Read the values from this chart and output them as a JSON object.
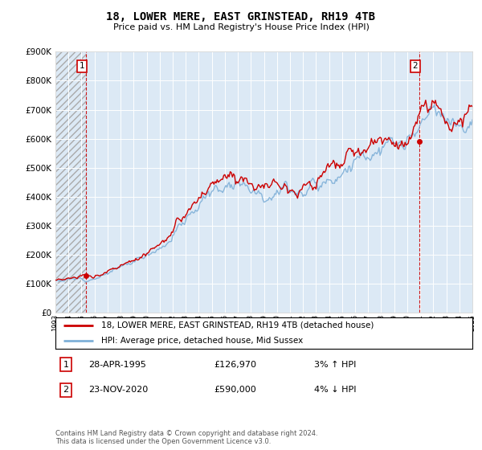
{
  "title": "18, LOWER MERE, EAST GRINSTEAD, RH19 4TB",
  "subtitle": "Price paid vs. HM Land Registry's House Price Index (HPI)",
  "legend_line1": "18, LOWER MERE, EAST GRINSTEAD, RH19 4TB (detached house)",
  "legend_line2": "HPI: Average price, detached house, Mid Sussex",
  "annotation1_label": "1",
  "annotation1_date": "28-APR-1995",
  "annotation1_price": 126970,
  "annotation1_hpi": "3% ↑ HPI",
  "annotation2_label": "2",
  "annotation2_date": "23-NOV-2020",
  "annotation2_price": 590000,
  "annotation2_hpi": "4% ↓ HPI",
  "footer": "Contains HM Land Registry data © Crown copyright and database right 2024.\nThis data is licensed under the Open Government Licence v3.0.",
  "price_color": "#cc0000",
  "hpi_color": "#7fb0d8",
  "annotation_color": "#cc0000",
  "plot_bg_color": "#dce9f5",
  "ylim": [
    0,
    900000
  ],
  "yticks": [
    0,
    100000,
    200000,
    300000,
    400000,
    500000,
    600000,
    700000,
    800000,
    900000
  ],
  "year_start": 1993,
  "year_end": 2025,
  "sale1_year": 1995.32,
  "sale1_value": 126970,
  "sale2_year": 2020.9,
  "sale2_value": 590000
}
